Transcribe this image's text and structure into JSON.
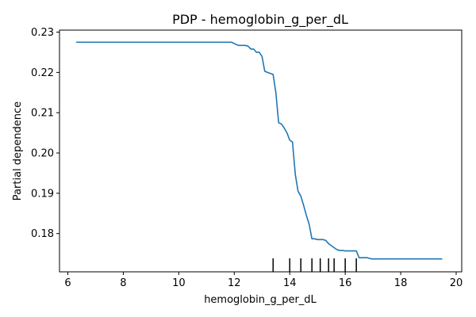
{
  "chart_data": {
    "type": "line",
    "title": "PDP - hemoglobin_g_per_dL",
    "xlabel": "hemoglobin_g_per_dL",
    "ylabel": "Partial dependence",
    "xlim": [
      5.7,
      20.2
    ],
    "ylim": [
      0.1705,
      0.2305
    ],
    "x_ticks": [
      6,
      8,
      10,
      12,
      14,
      16,
      18,
      20
    ],
    "y_ticks": [
      0.18,
      0.19,
      0.2,
      0.21,
      0.22,
      0.23
    ],
    "x_tick_labels": [
      "6",
      "8",
      "10",
      "12",
      "14",
      "16",
      "18",
      "20"
    ],
    "y_tick_labels": [
      "0.18",
      "0.19",
      "0.20",
      "0.21",
      "0.22",
      "0.23"
    ],
    "grid": false,
    "line_color": "#1f77b4",
    "series": [
      {
        "x": [
          6.3,
          8.0,
          10.0,
          11.9,
          12.05,
          12.15,
          12.4,
          12.5,
          12.6,
          12.7,
          12.8,
          12.9,
          13.0,
          13.1,
          13.2,
          13.4,
          13.5,
          13.6,
          13.7,
          13.8,
          13.9,
          14.0,
          14.1,
          14.2,
          14.3,
          14.4,
          14.5,
          14.6,
          14.7,
          14.8,
          14.9,
          15.0,
          15.2,
          15.3,
          15.4,
          15.5,
          15.6,
          15.7,
          15.8,
          15.9,
          16.0,
          16.2,
          16.4,
          16.5,
          16.6,
          16.8,
          16.95,
          17.1,
          17.5,
          18.0,
          19.5
        ],
        "y": [
          0.2275,
          0.2275,
          0.2275,
          0.2275,
          0.227,
          0.2267,
          0.2267,
          0.2265,
          0.2258,
          0.2258,
          0.225,
          0.225,
          0.224,
          0.2203,
          0.22,
          0.2195,
          0.215,
          0.2075,
          0.2072,
          0.2062,
          0.205,
          0.2032,
          0.2027,
          0.1947,
          0.1905,
          0.1893,
          0.187,
          0.1845,
          0.1823,
          0.1787,
          0.1787,
          0.1785,
          0.1785,
          0.1783,
          0.1775,
          0.177,
          0.1765,
          0.176,
          0.1758,
          0.1758,
          0.1757,
          0.1757,
          0.1757,
          0.174,
          0.174,
          0.174,
          0.1737,
          0.1737,
          0.1737,
          0.1737,
          0.1737
        ]
      }
    ],
    "rug": [
      13.4,
      14.0,
      14.4,
      14.8,
      15.1,
      15.4,
      15.6,
      16.0,
      16.4
    ]
  }
}
